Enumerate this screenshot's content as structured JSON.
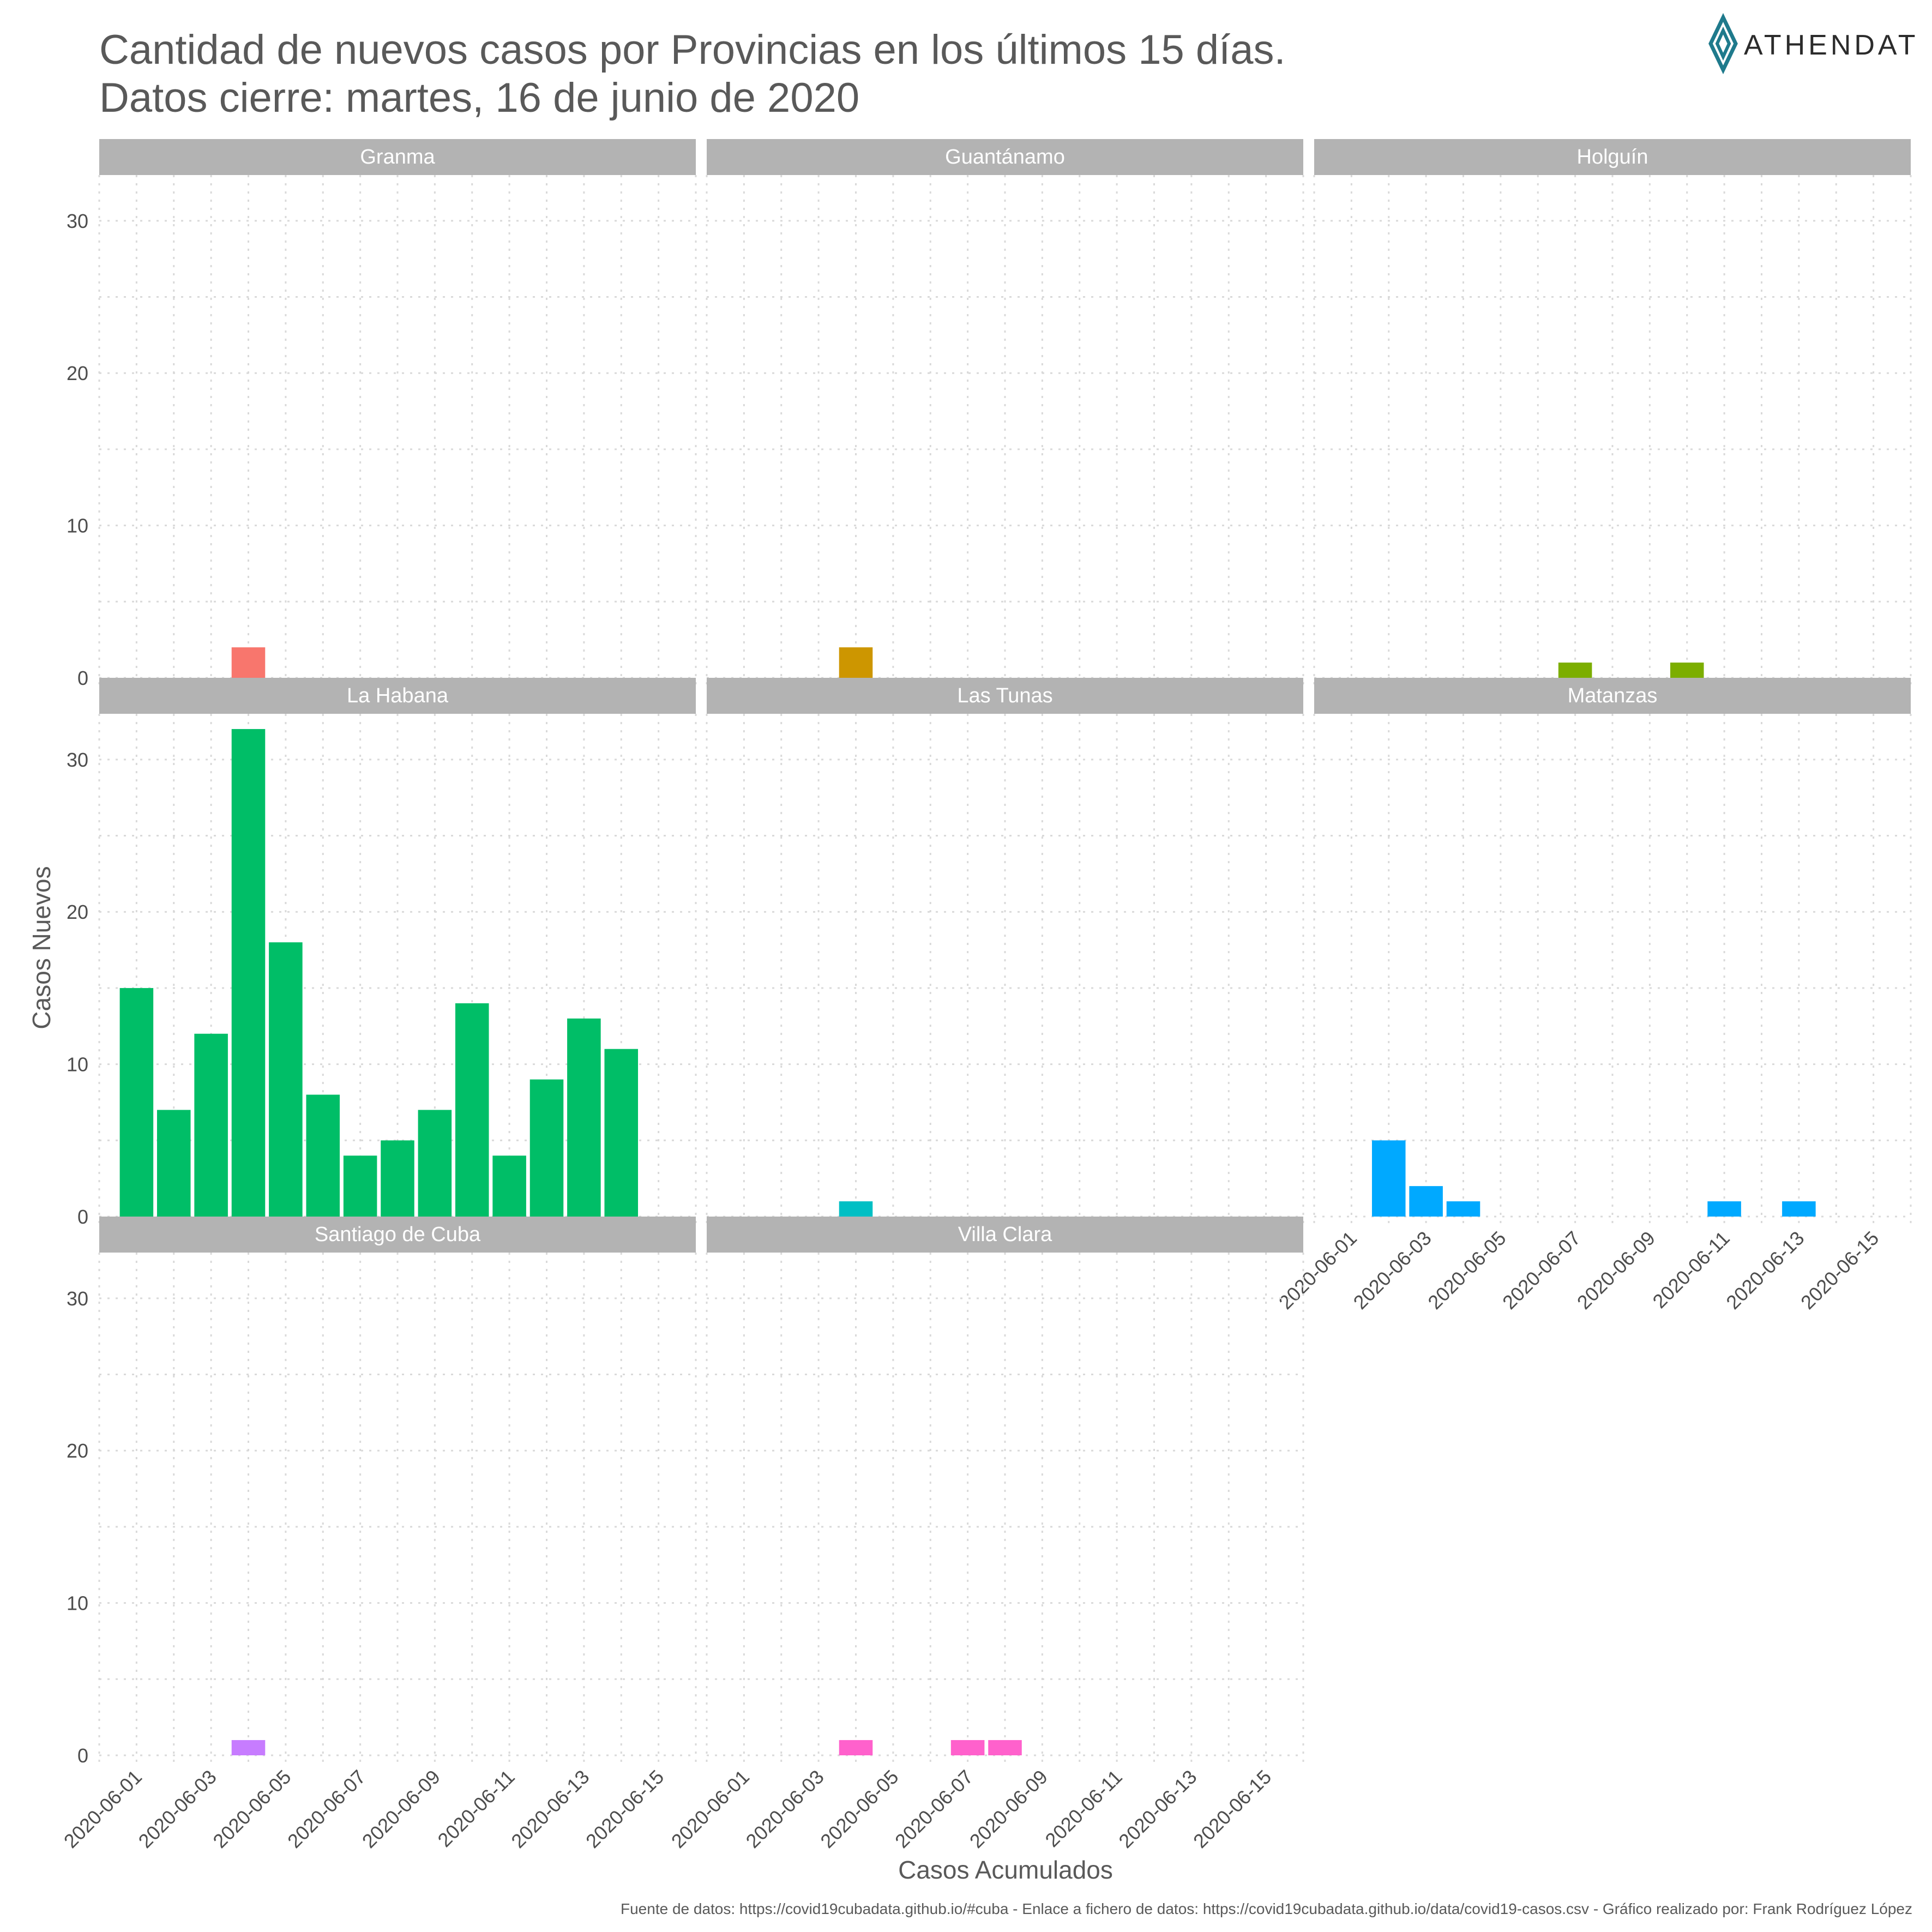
{
  "header": {
    "title_line1": "Cantidad de nuevos casos por Provincias en los últimos 15 días.",
    "title_line2": "Datos cierre: martes, 16 de junio de 2020",
    "logo_text": "ATHENDAT",
    "logo_icon": "diamond-logo-icon",
    "logo_color": "#1f7a8c"
  },
  "caption": "Fuente de datos: https://covid19cubadata.github.io/#cuba - Enlace a fichero de datos: https://covid19cubadata.github.io/data/covid19-casos.csv - Gráfico realizado por: Frank Rodríguez López",
  "chart_data": {
    "type": "bar",
    "xlabel": "Casos Acumulados",
    "ylabel": "Casos Nuevos",
    "ylim": [
      0,
      33
    ],
    "y_ticks": [
      0,
      10,
      20,
      30
    ],
    "x_ticks": [
      "2020-06-01",
      "2020-06-03",
      "2020-06-05",
      "2020-06-07",
      "2020-06-09",
      "2020-06-11",
      "2020-06-13",
      "2020-06-15"
    ],
    "x_range": [
      "2020-05-31",
      "2020-06-16"
    ],
    "grid": true,
    "layout": {
      "columns": 3,
      "rows": 3
    },
    "facets": [
      {
        "name": "Granma",
        "color": "#F8766D",
        "points": [
          {
            "x": "2020-06-04",
            "y": 2
          }
        ]
      },
      {
        "name": "Guantánamo",
        "color": "#CD9600",
        "points": [
          {
            "x": "2020-06-04",
            "y": 2
          }
        ]
      },
      {
        "name": "Holguín",
        "color": "#7CAE00",
        "points": [
          {
            "x": "2020-06-07",
            "y": 1
          },
          {
            "x": "2020-06-10",
            "y": 1
          }
        ]
      },
      {
        "name": "La Habana",
        "color": "#00BE67",
        "points": [
          {
            "x": "2020-06-01",
            "y": 15
          },
          {
            "x": "2020-06-02",
            "y": 7
          },
          {
            "x": "2020-06-03",
            "y": 12
          },
          {
            "x": "2020-06-04",
            "y": 32
          },
          {
            "x": "2020-06-05",
            "y": 18
          },
          {
            "x": "2020-06-06",
            "y": 8
          },
          {
            "x": "2020-06-07",
            "y": 4
          },
          {
            "x": "2020-06-08",
            "y": 5
          },
          {
            "x": "2020-06-09",
            "y": 7
          },
          {
            "x": "2020-06-10",
            "y": 14
          },
          {
            "x": "2020-06-11",
            "y": 4
          },
          {
            "x": "2020-06-12",
            "y": 9
          },
          {
            "x": "2020-06-13",
            "y": 13
          },
          {
            "x": "2020-06-14",
            "y": 11
          }
        ]
      },
      {
        "name": "Las Tunas",
        "color": "#00BFC4",
        "points": [
          {
            "x": "2020-06-04",
            "y": 1
          }
        ]
      },
      {
        "name": "Matanzas",
        "color": "#00A9FF",
        "points": [
          {
            "x": "2020-06-02",
            "y": 5
          },
          {
            "x": "2020-06-03",
            "y": 2
          },
          {
            "x": "2020-06-04",
            "y": 1
          },
          {
            "x": "2020-06-11",
            "y": 1
          },
          {
            "x": "2020-06-13",
            "y": 1
          }
        ]
      },
      {
        "name": "Santiago de Cuba",
        "color": "#C77CFF",
        "points": [
          {
            "x": "2020-06-04",
            "y": 1
          }
        ]
      },
      {
        "name": "Villa Clara",
        "color": "#FF61CC",
        "points": [
          {
            "x": "2020-06-04",
            "y": 1
          },
          {
            "x": "2020-06-07",
            "y": 1
          },
          {
            "x": "2020-06-08",
            "y": 1
          }
        ]
      }
    ]
  }
}
